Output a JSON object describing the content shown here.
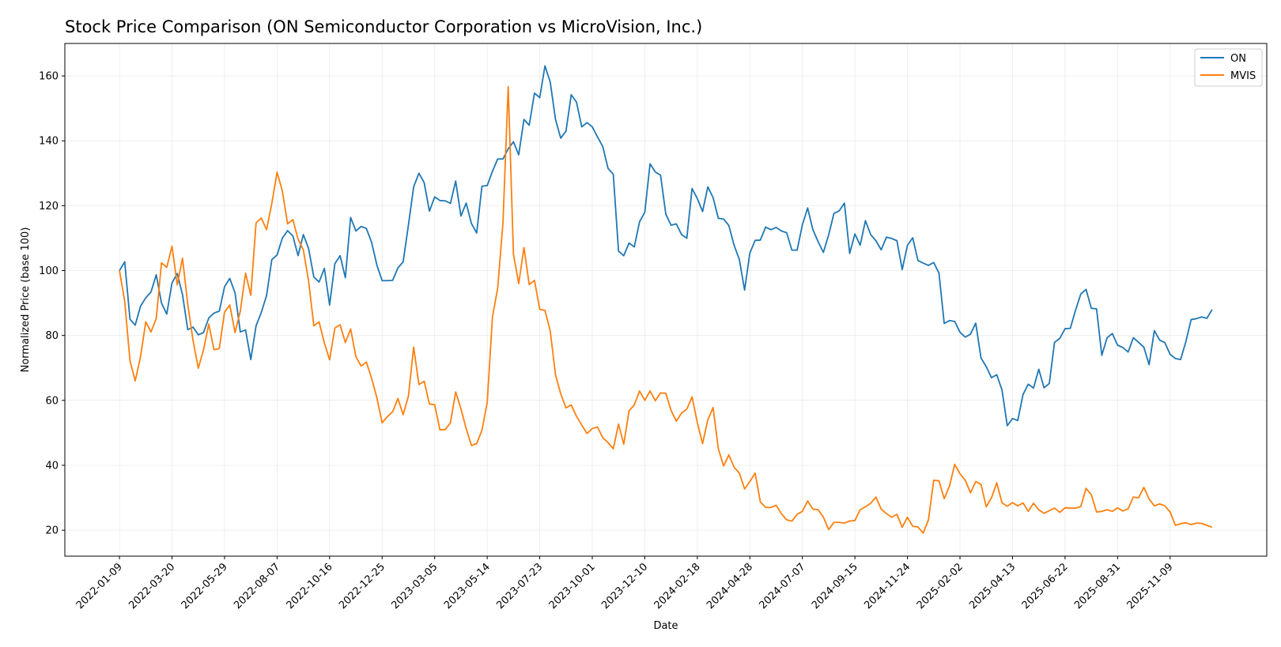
{
  "chart_data": {
    "type": "line",
    "title": "Stock Price Comparison (ON Semiconductor Corporation vs MicroVision, Inc.)",
    "xlabel": "Date",
    "ylabel": "Normalized Price (base 100)",
    "x_start": "2022-01-09",
    "x_step_days": 7,
    "ylim": [
      12,
      170
    ],
    "grid": true,
    "legend_position": "top-right",
    "x_ticks": [
      "2022-01-09",
      "2022-03-20",
      "2022-05-29",
      "2022-08-07",
      "2022-10-16",
      "2022-12-25",
      "2023-03-05",
      "2023-05-14",
      "2023-07-23",
      "2023-10-01",
      "2023-12-10",
      "2024-02-18",
      "2024-04-28",
      "2024-07-07",
      "2024-09-15",
      "2024-11-24",
      "2025-02-02",
      "2025-04-13",
      "2025-06-22",
      "2025-08-31",
      "2025-11-09"
    ],
    "y_ticks": [
      20,
      40,
      60,
      80,
      100,
      120,
      140,
      160
    ],
    "series": [
      {
        "name": "ON",
        "color": "#1f77b4",
        "values": [
          100.0,
          102.7,
          85.0,
          83.2,
          89.0,
          91.6,
          93.4,
          98.7,
          90.0,
          86.6,
          96.2,
          99.1,
          92.6,
          81.8,
          82.6,
          80.2,
          80.9,
          85.4,
          86.9,
          87.5,
          95.0,
          97.6,
          93.1,
          81.1,
          81.7,
          72.6,
          83.0,
          87.1,
          92.3,
          103.4,
          104.8,
          110.0,
          112.3,
          110.7,
          104.6,
          111.1,
          106.8,
          98.0,
          96.5,
          100.7,
          89.4,
          102.1,
          104.6,
          97.8,
          116.4,
          112.2,
          113.6,
          113.0,
          108.7,
          101.7,
          96.9,
          96.9,
          97.0,
          100.8,
          102.7,
          114.0,
          125.8,
          130.0,
          127.1,
          118.3,
          122.7,
          121.6,
          121.5,
          120.7,
          127.6,
          116.8,
          120.8,
          114.5,
          111.6,
          126.0,
          126.2,
          130.6,
          134.4,
          134.4,
          137.5,
          139.7,
          135.7,
          146.6,
          144.8,
          154.7,
          153.3,
          163.1,
          158.1,
          146.6,
          140.8,
          143.0,
          154.2,
          151.9,
          144.3,
          145.6,
          144.3,
          141.2,
          138.2,
          131.5,
          129.7,
          106.0,
          104.6,
          108.5,
          107.3,
          115.0,
          118.0,
          132.9,
          130.4,
          129.4,
          117.4,
          114.0,
          114.4,
          111.1,
          110.0,
          125.3,
          122.2,
          118.2,
          125.8,
          122.5,
          116.1,
          115.9,
          113.9,
          107.8,
          103.4,
          94.0,
          105.4,
          109.3,
          109.4,
          113.4,
          112.6,
          113.3,
          112.2,
          111.7,
          106.3,
          106.3,
          114.1,
          119.3,
          112.6,
          108.9,
          105.6,
          111.0,
          117.6,
          118.4,
          120.8,
          105.3,
          111.3,
          107.8,
          115.4,
          111.1,
          109.2,
          106.4,
          110.3,
          109.9,
          109.2,
          100.3,
          107.8,
          110.1,
          103.1,
          102.3,
          101.6,
          102.5,
          99.2,
          83.7,
          84.6,
          84.3,
          81.0,
          79.5,
          80.4,
          83.8,
          73.1,
          70.4,
          67.0,
          67.9,
          63.2,
          52.2,
          54.4,
          53.8,
          61.8,
          65.0,
          63.8,
          69.6,
          63.9,
          65.2,
          77.9,
          79.1,
          82.1,
          82.2,
          87.8,
          92.8,
          94.2,
          88.4,
          88.2,
          73.9,
          79.3,
          80.6,
          77.0,
          76.3,
          74.9,
          79.3,
          77.9,
          76.4,
          71.0,
          81.5,
          78.6,
          77.8,
          74.2,
          72.9,
          72.6,
          78.1,
          84.9,
          85.2,
          85.7,
          85.3,
          88.0
        ]
      },
      {
        "name": "MVIS",
        "color": "#ff7f0e",
        "values": [
          100.0,
          90.5,
          72.2,
          66.0,
          73.4,
          84.2,
          81.1,
          85.2,
          102.4,
          101.0,
          107.5,
          95.6,
          103.8,
          89.6,
          78.5,
          69.9,
          75.6,
          83.5,
          75.6,
          76.0,
          87.2,
          89.4,
          80.9,
          87.5,
          99.2,
          92.4,
          114.7,
          116.2,
          112.6,
          120.7,
          130.3,
          124.6,
          114.4,
          115.7,
          109.7,
          106.4,
          96.8,
          83.0,
          84.2,
          77.7,
          72.5,
          82.3,
          83.3,
          77.8,
          82.0,
          73.5,
          70.6,
          71.8,
          66.8,
          60.8,
          53.1,
          55.0,
          56.5,
          60.6,
          55.6,
          61.3,
          76.4,
          64.9,
          65.9,
          58.9,
          58.7,
          50.9,
          51.0,
          53.1,
          62.6,
          57.4,
          51.3,
          46.1,
          46.7,
          50.8,
          59.3,
          85.7,
          94.6,
          114.7,
          156.7,
          105.0,
          96.0,
          107.1,
          95.7,
          97.0,
          88.1,
          87.7,
          81.4,
          67.9,
          62.0,
          57.7,
          58.6,
          55.1,
          52.4,
          49.8,
          51.3,
          51.8,
          48.5,
          47.0,
          45.1,
          52.7,
          46.5,
          56.8,
          58.6,
          62.9,
          60.0,
          62.9,
          59.9,
          62.3,
          62.2,
          56.9,
          53.6,
          56.1,
          57.3,
          61.1,
          53.1,
          46.7,
          54.0,
          57.8,
          45.1,
          39.8,
          43.2,
          39.4,
          37.6,
          32.7,
          35.0,
          37.6,
          28.7,
          27.0,
          27.0,
          27.7,
          25.1,
          23.2,
          22.8,
          24.9,
          25.8,
          29.0,
          26.5,
          26.3,
          24.0,
          20.2,
          22.4,
          22.4,
          22.2,
          22.8,
          23.0,
          26.3,
          27.2,
          28.3,
          30.2,
          26.5,
          25.1,
          24.0,
          24.9,
          20.9,
          24.0,
          21.2,
          21.0,
          19.1,
          23.2,
          35.4,
          35.2,
          29.7,
          33.6,
          40.3,
          37.4,
          35.4,
          31.5,
          35.0,
          34.1,
          27.2,
          30.0,
          34.6,
          28.4,
          27.4,
          28.5,
          27.5,
          28.4,
          25.8,
          28.3,
          26.3,
          25.2,
          26.0,
          26.8,
          25.5,
          26.9,
          26.8,
          26.8,
          27.3,
          32.9,
          30.9,
          25.6,
          25.8,
          26.3,
          25.8,
          26.9,
          25.9,
          26.6,
          30.2,
          30.0,
          33.2,
          29.6,
          27.5,
          28.1,
          27.5,
          25.6,
          21.5,
          22.0,
          22.3,
          21.7,
          22.2,
          22.1,
          21.5,
          20.9
        ]
      }
    ]
  }
}
